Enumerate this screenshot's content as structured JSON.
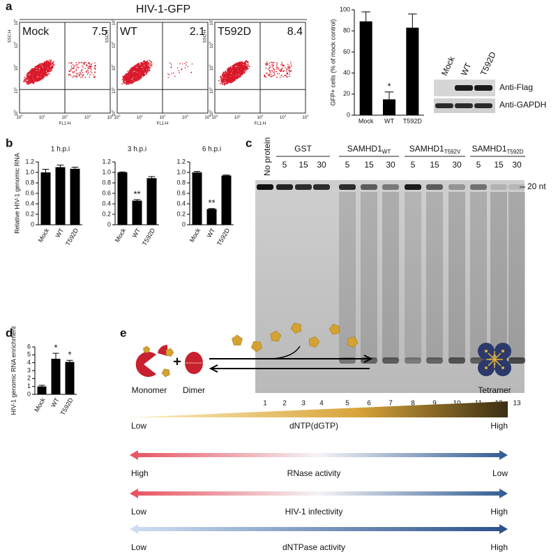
{
  "panel_labels": [
    "a",
    "b",
    "c",
    "d",
    "e"
  ],
  "flow": {
    "title": "HIV-1-GFP",
    "y_label": "SSC-H",
    "x_label": "FL1-H",
    "tick_base": "10",
    "tick_exponents": [
      "0",
      "1",
      "2",
      "3",
      "4"
    ],
    "plots": [
      {
        "label": "Mock",
        "value": 7.5
      },
      {
        "label": "WT",
        "value": 2.1
      },
      {
        "label": "T592D",
        "value": 8.4
      }
    ]
  },
  "blot": {
    "lanes": [
      "Mock",
      "WT",
      "T592D"
    ],
    "antibodies": [
      "Anti-Flag",
      "Anti-GAPDH"
    ]
  },
  "gel": {
    "no_protein": "No protein",
    "groups": [
      {
        "name": "GST"
      },
      {
        "name": "SAMHD1",
        "sub": "WT"
      },
      {
        "name": "SAMHD1",
        "sub": "T592V"
      },
      {
        "name": "SAMHD1",
        "sub": "T592D"
      }
    ],
    "times": [
      5,
      15,
      30
    ],
    "lanes": [
      1,
      2,
      3,
      4,
      5,
      6,
      7,
      8,
      9,
      10,
      11,
      12,
      13
    ],
    "marker": "20 nt"
  },
  "diagram": {
    "states": [
      "Monomer",
      "Dimer",
      "Tetramer"
    ],
    "plus": "+",
    "gradient": {
      "low": "Low",
      "label": "dNTP(dGTP)",
      "high": "High"
    },
    "arrows": [
      {
        "left": "High",
        "label": "RNase activity",
        "right": "Low"
      },
      {
        "left": "Low",
        "label": "HIV-1 infectivity",
        "right": "High"
      },
      {
        "left": "Low",
        "label": "dNTPase activity",
        "right": "High"
      }
    ]
  },
  "chart_data": [
    {
      "type": "bar",
      "y_label": "GFP+ cells (% of mock control)",
      "categories": [
        "Mock",
        "WT",
        "T592D"
      ],
      "values": [
        89,
        15,
        83
      ],
      "errors": [
        9,
        7,
        13
      ],
      "annotations": [
        null,
        "*",
        null
      ],
      "color": "#000000",
      "ylim": [
        0,
        100
      ],
      "yticks": [
        0,
        20,
        40,
        60,
        80,
        100
      ]
    },
    {
      "type": "bar",
      "title": "1 h.p.i",
      "y_label": "Relative HIV-1 genomic RNA",
      "categories": [
        "Mock",
        "WT",
        "T592D"
      ],
      "values": [
        1.0,
        1.1,
        1.07
      ],
      "errors": [
        0.06,
        0.04,
        0.03
      ],
      "annotations": [
        null,
        null,
        null
      ],
      "color": "#000000",
      "ylim": [
        0,
        1.2
      ],
      "yticks": [
        0,
        0.2,
        0.4,
        0.6,
        0.8,
        {
          "value": 1,
          "label": "1.0"
        },
        1.2
      ]
    },
    {
      "type": "bar",
      "title": "3 h.p.i",
      "categories": [
        "Mock",
        "WT",
        "T592D"
      ],
      "values": [
        1.0,
        0.46,
        0.89
      ],
      "errors": [
        0.01,
        0.02,
        0.03
      ],
      "annotations": [
        null,
        "**",
        null
      ],
      "color": "#000000",
      "ylim": [
        0,
        1.2
      ],
      "yticks": [
        0,
        0.2,
        0.4,
        0.6,
        0.8,
        {
          "value": 1,
          "label": "1.0"
        },
        1.2
      ]
    },
    {
      "type": "bar",
      "title": "6 h.p.i",
      "categories": [
        "Mock",
        "WT",
        "T592D"
      ],
      "values": [
        1.0,
        0.3,
        0.94
      ],
      "errors": [
        0.02,
        0.01,
        0.01
      ],
      "annotations": [
        null,
        "**",
        null
      ],
      "color": "#000000",
      "ylim": [
        0,
        1.2
      ],
      "yticks": [
        0,
        0.2,
        0.4,
        0.6,
        0.8,
        {
          "value": 1,
          "label": "1.0"
        },
        1.2
      ]
    },
    {
      "type": "bar",
      "y_label": "HIV-1 genomic RNA enrichment",
      "categories": [
        "Mock",
        "WT",
        "T592D"
      ],
      "values": [
        1.0,
        4.5,
        4.1
      ],
      "errors": [
        0.15,
        0.7,
        0.2
      ],
      "annotations": [
        null,
        "*",
        "*"
      ],
      "color": "#000000",
      "ylim": [
        0,
        6
      ],
      "yticks": [
        0,
        1,
        2,
        3,
        4,
        5,
        6
      ]
    }
  ]
}
